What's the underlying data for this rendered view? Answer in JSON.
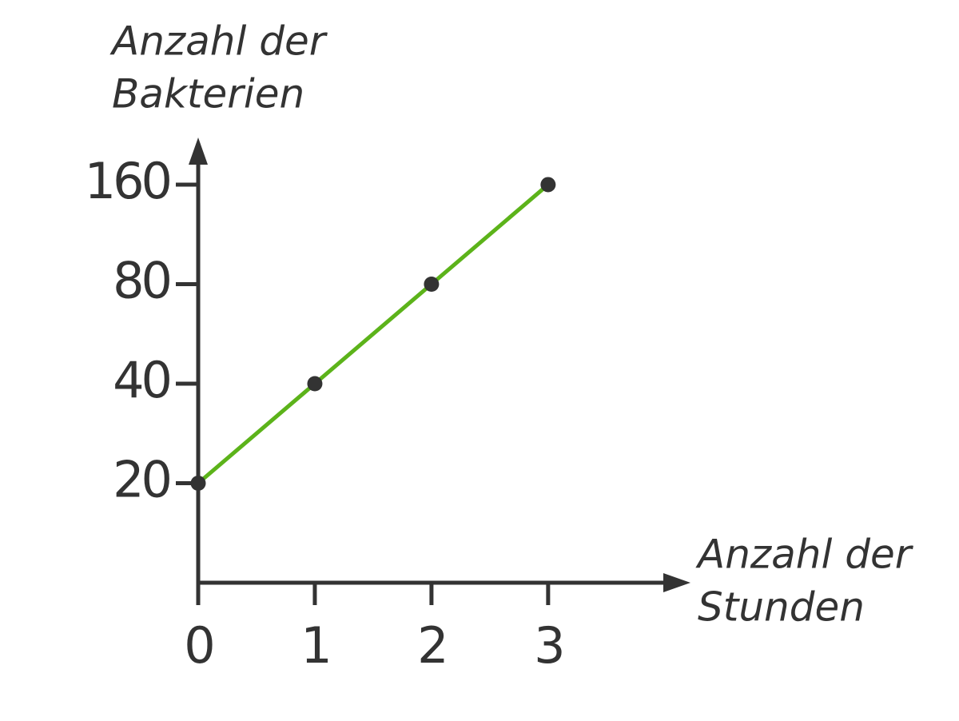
{
  "chart_data": {
    "type": "line",
    "y_label": [
      "Anzahl der",
      "Bakterien"
    ],
    "x_label": [
      "Anzahl der",
      "Stunden"
    ],
    "x": [
      0,
      1,
      2,
      3
    ],
    "series": [
      {
        "color": "#5cb31a",
        "values": [
          20,
          40,
          80,
          160
        ]
      }
    ],
    "xlim": [
      0,
      4.2
    ],
    "xticks": [
      0,
      1,
      2,
      3
    ],
    "ylim": [
      10,
      218
    ],
    "yticks": [
      20,
      40,
      80,
      160
    ],
    "y_scale": "log",
    "grid": false
  }
}
